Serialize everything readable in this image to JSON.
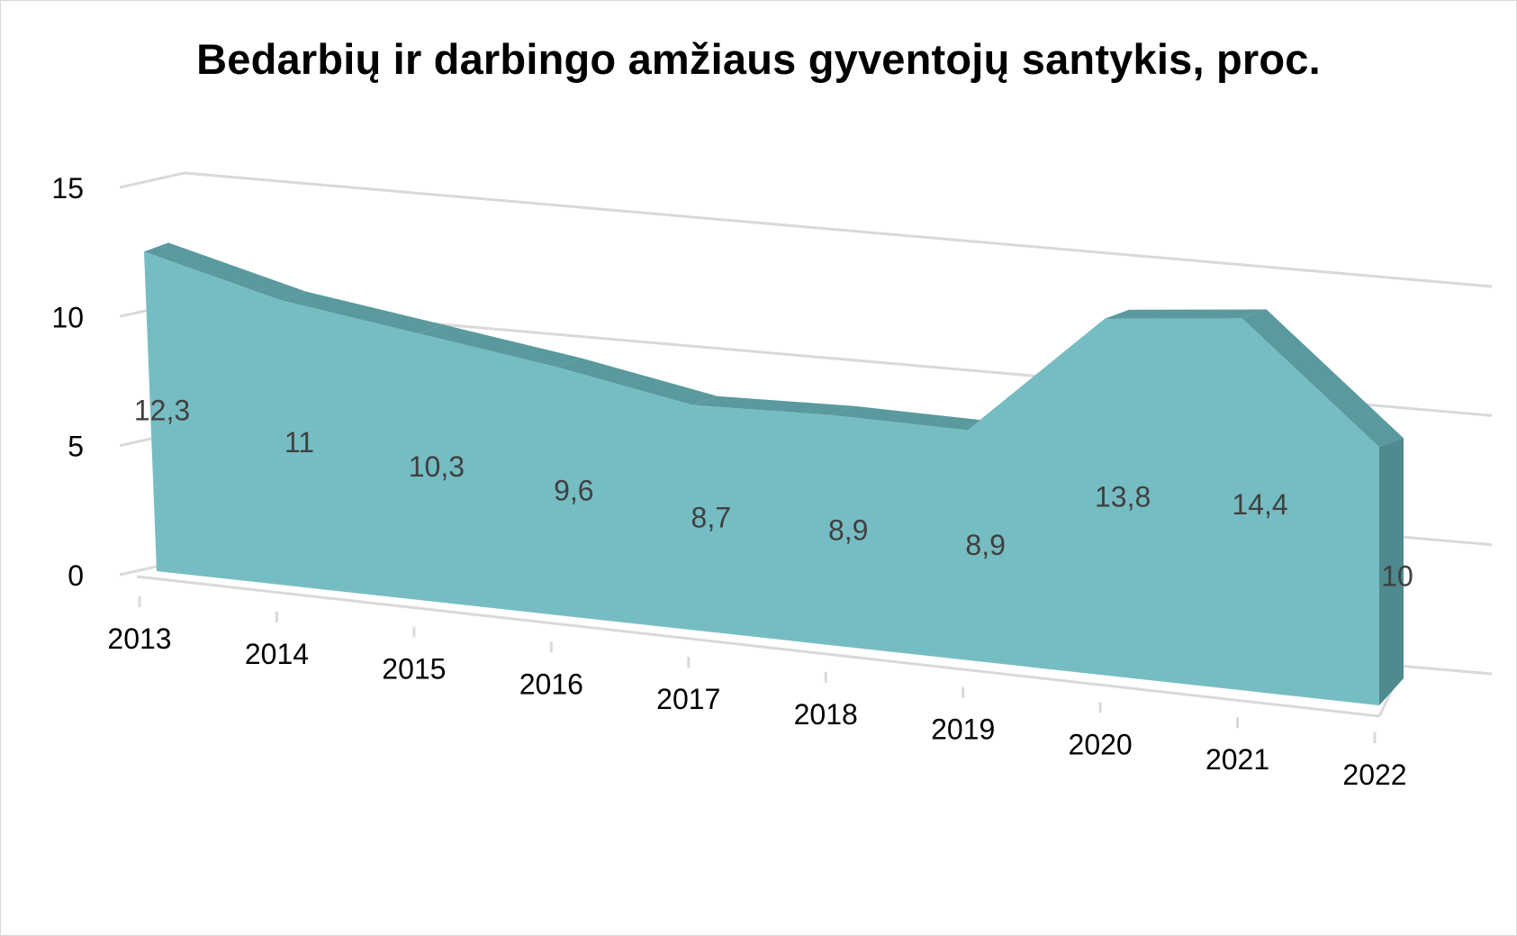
{
  "chart_data": {
    "type": "area",
    "title": "Bedarbių ir darbingo amžiaus gyventojų santykis, proc.",
    "xlabel": "",
    "ylabel": "",
    "categories": [
      "2013",
      "2014",
      "2015",
      "2016",
      "2017",
      "2018",
      "2019",
      "2020",
      "2021",
      "2022"
    ],
    "series": [
      {
        "values": [
          12.3,
          11,
          10.3,
          9.6,
          8.7,
          8.9,
          8.9,
          13.8,
          14.4,
          10
        ],
        "labels": [
          "12,3",
          "11",
          "10,3",
          "9,6",
          "8,7",
          "8,9",
          "8,9",
          "13,8",
          "14,4",
          "10"
        ]
      }
    ],
    "y_ticks": [
      "0",
      "5",
      "10",
      "15"
    ],
    "ylim": [
      0,
      15
    ],
    "grid": true,
    "legend": "none",
    "three_d": true,
    "colors": {
      "area_front": "#75bdc3",
      "area_top": "#5a9a9e",
      "area_side": "#4e8a8e",
      "gridline": "#d9d9d9"
    }
  }
}
